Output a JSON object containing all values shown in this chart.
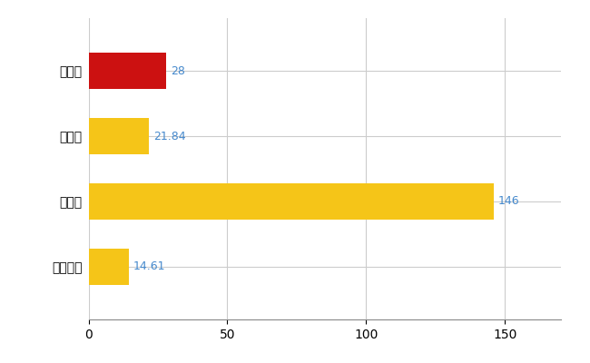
{
  "categories": [
    "野洲市",
    "県平均",
    "県最大",
    "全国平均"
  ],
  "values": [
    28,
    21.84,
    146,
    14.61
  ],
  "labels": [
    "28",
    "21.84",
    "146",
    "14.61"
  ],
  "bar_colors": [
    "#cc1111",
    "#f5c518",
    "#f5c518",
    "#f5c518"
  ],
  "background_color": "#ffffff",
  "xlim": [
    0,
    170
  ],
  "grid_color": "#cccccc",
  "label_color": "#4488cc",
  "figsize": [
    6.5,
    4.0
  ],
  "dpi": 100,
  "bar_height": 0.55
}
